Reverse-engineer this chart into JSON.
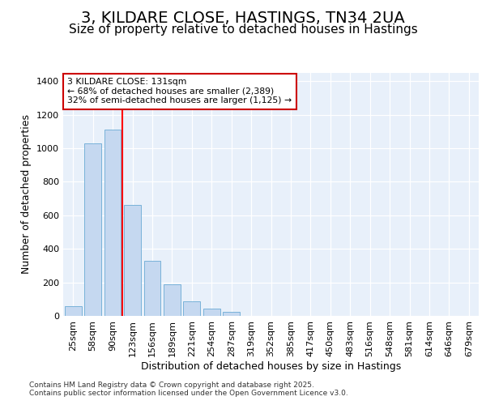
{
  "title1": "3, KILDARE CLOSE, HASTINGS, TN34 2UA",
  "title2": "Size of property relative to detached houses in Hastings",
  "xlabel": "Distribution of detached houses by size in Hastings",
  "ylabel": "Number of detached properties",
  "categories": [
    "25sqm",
    "58sqm",
    "90sqm",
    "123sqm",
    "156sqm",
    "189sqm",
    "221sqm",
    "254sqm",
    "287sqm",
    "319sqm",
    "352sqm",
    "385sqm",
    "417sqm",
    "450sqm",
    "483sqm",
    "516sqm",
    "548sqm",
    "581sqm",
    "614sqm",
    "646sqm",
    "679sqm"
  ],
  "values": [
    60,
    1030,
    1110,
    660,
    330,
    190,
    85,
    45,
    22,
    0,
    0,
    0,
    0,
    0,
    0,
    0,
    0,
    0,
    0,
    0,
    0
  ],
  "bar_color": "#c5d8f0",
  "bar_edge_color": "#6aaad4",
  "red_line_x": 2.5,
  "annotation_line1": "3 KILDARE CLOSE: 131sqm",
  "annotation_line2": "← 68% of detached houses are smaller (2,389)",
  "annotation_line3": "32% of semi-detached houses are larger (1,125) →",
  "annotation_box_facecolor": "#ffffff",
  "annotation_box_edgecolor": "#cc0000",
  "figure_bg_color": "#ffffff",
  "plot_bg_color": "#e8f0fa",
  "grid_color": "#ffffff",
  "footer_text": "Contains HM Land Registry data © Crown copyright and database right 2025.\nContains public sector information licensed under the Open Government Licence v3.0.",
  "ylim_max": 1450,
  "yticks": [
    0,
    200,
    400,
    600,
    800,
    1000,
    1200,
    1400
  ],
  "title_fontsize": 14,
  "subtitle_fontsize": 11,
  "axis_label_fontsize": 9,
  "tick_fontsize": 8,
  "footer_fontsize": 6.5
}
